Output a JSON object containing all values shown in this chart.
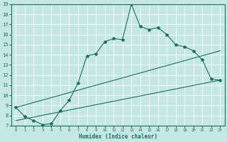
{
  "xlabel": "Humidex (Indice chaleur)",
  "bg_color": "#c5e8e5",
  "grid_color": "#ffffff",
  "line_color": "#1a6e64",
  "xlim": [
    -0.5,
    23.5
  ],
  "ylim": [
    7,
    19
  ],
  "yticks": [
    7,
    8,
    9,
    10,
    11,
    12,
    13,
    14,
    15,
    16,
    17,
    18,
    19
  ],
  "xticks": [
    0,
    1,
    2,
    3,
    4,
    5,
    6,
    7,
    8,
    9,
    10,
    11,
    12,
    13,
    14,
    15,
    16,
    17,
    18,
    19,
    20,
    21,
    22,
    23
  ],
  "series1_x": [
    0,
    1,
    2,
    3,
    4,
    5,
    6,
    7,
    8,
    9,
    10,
    11,
    12,
    13,
    14,
    15,
    16,
    17,
    18,
    19,
    20,
    21,
    22,
    23
  ],
  "series1_y": [
    8.8,
    7.9,
    7.5,
    7.1,
    7.2,
    8.5,
    9.5,
    11.2,
    13.9,
    14.1,
    15.3,
    15.6,
    15.5,
    19.0,
    16.8,
    16.5,
    16.7,
    16.0,
    15.0,
    14.8,
    14.4,
    13.5,
    11.6,
    11.5
  ],
  "series2_x": [
    0,
    23
  ],
  "series2_y": [
    7.5,
    11.5
  ],
  "series3_x": [
    0,
    23
  ],
  "series3_y": [
    8.8,
    14.4
  ]
}
